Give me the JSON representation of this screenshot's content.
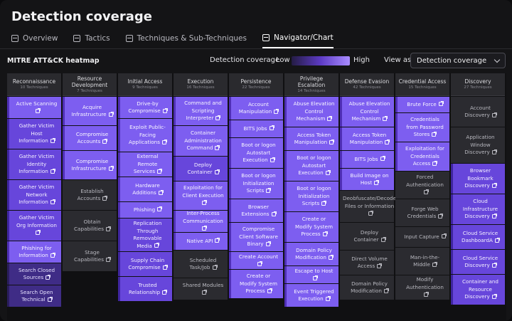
{
  "page_title": "Detection coverage",
  "tabs": [
    {
      "label": "Overview",
      "icon": "overview-icon",
      "active": false
    },
    {
      "label": "Tactics",
      "icon": "tactics-icon",
      "active": false
    },
    {
      "label": "Techniques & Sub-Techniques",
      "icon": "techniques-icon",
      "active": false
    },
    {
      "label": "Navigator/Chart",
      "icon": "navigator-icon",
      "active": true
    }
  ],
  "heatmap": {
    "title": "MITRE ATT&CK heatmap",
    "legend_label": "Detection coverage",
    "low_label": "Low",
    "high_label": "High",
    "legend_colors": [
      "#241c44",
      "#5d3bc5",
      "#a98cff"
    ],
    "view_as_label": "View as",
    "view_as_value": "Detection coverage"
  },
  "columns": [
    {
      "name": "Reconnaissance",
      "count": "10 Techniques",
      "cells": [
        {
          "text": "Active Scanning",
          "level": 4,
          "h": 30
        },
        {
          "text": "Gather Victim Host Information",
          "level": 3,
          "h": 42
        },
        {
          "text": "Gather Victim Identity Information",
          "level": 3,
          "h": 42
        },
        {
          "text": "Gather Victim Network Information",
          "level": 3,
          "h": 42
        },
        {
          "text": "Gather Victim Org Information",
          "level": 3,
          "h": 42
        },
        {
          "text": "Phishing for Information",
          "level": 4,
          "h": 30
        },
        {
          "text": "Search Closed Sources",
          "level": 2,
          "h": 30
        },
        {
          "text": "Search Open Technical",
          "level": 2,
          "h": 30
        }
      ]
    },
    {
      "name": "Resource Development",
      "count": "7 Techniques",
      "cells": [
        {
          "text": "Acquire Infrastructure",
          "level": 4,
          "h": 40
        },
        {
          "text": "Compromise Accounts",
          "level": 4,
          "h": 34
        },
        {
          "text": "Compromise Infrastructure",
          "level": 4,
          "h": 40
        },
        {
          "text": "Establish Accounts",
          "level": 1,
          "h": 42
        },
        {
          "text": "Obtain Capabilities",
          "level": 1,
          "h": 42
        },
        {
          "text": "Stage Capabilities",
          "level": 1,
          "h": 42
        }
      ]
    },
    {
      "name": "Initial Access",
      "count": "9 Techniques",
      "cells": [
        {
          "text": "Drive-by Compromise",
          "level": 4,
          "h": 30
        },
        {
          "text": "Exploit Public-Facing Applications",
          "level": 4,
          "h": 46
        },
        {
          "text": "External Remote Services",
          "level": 4,
          "h": 34
        },
        {
          "text": "Hardware Additions",
          "level": 4,
          "h": 34
        },
        {
          "text": "Phishing",
          "level": 4,
          "h": 22
        },
        {
          "text": "Replication Through Removable Media",
          "level": 3,
          "h": 46
        },
        {
          "text": "Supply Chain Compromise",
          "level": 3,
          "h": 34
        },
        {
          "text": "Trusted Relationship",
          "level": 3,
          "h": 34
        }
      ]
    },
    {
      "name": "Execution",
      "count": "16 Techniques",
      "cells": [
        {
          "text": "Command and Scripting Interpreter",
          "level": 4,
          "h": 40
        },
        {
          "text": "Container Administration Command",
          "level": 4,
          "h": 42
        },
        {
          "text": "Deploy Container",
          "level": 3,
          "h": 34
        },
        {
          "text": "Exploitation for Client Execution",
          "level": 4,
          "h": 40
        },
        {
          "text": "Inter-Process Communication",
          "level": 4,
          "h": 30
        },
        {
          "text": "Native API",
          "level": 4,
          "h": 24
        },
        {
          "text": "Scheduled Task/Job",
          "level": 1,
          "h": 38
        },
        {
          "text": "Shared Modules",
          "level": 1,
          "h": 30
        }
      ]
    },
    {
      "name": "Persistence",
      "count": "22 Techniques",
      "cells": [
        {
          "text": "Account Manipulation",
          "level": 4,
          "h": 32
        },
        {
          "text": "BITS Jobs",
          "level": 4,
          "h": 24
        },
        {
          "text": "Boot or logon Autostart Execution",
          "level": 4,
          "h": 42
        },
        {
          "text": "Boot or logon Initialization Scripts",
          "level": 4,
          "h": 42
        },
        {
          "text": "Browser Extensions",
          "level": 4,
          "h": 32
        },
        {
          "text": "Compromise Client Software Binary",
          "level": 4,
          "h": 40
        },
        {
          "text": "Create Account",
          "level": 4,
          "h": 24
        },
        {
          "text": "Create or Modify System Process",
          "level": 4,
          "h": 40
        }
      ]
    },
    {
      "name": "Privilege Escalation",
      "count": "14 Techniques",
      "cells": [
        {
          "text": "Abuse Elevation Control Mechanism",
          "level": 4,
          "h": 42
        },
        {
          "text": "Access Token Manipulation",
          "level": 4,
          "h": 32
        },
        {
          "text": "Boot or logon Autostart Execution",
          "level": 4,
          "h": 42
        },
        {
          "text": "Boot or logon Initialization Scripts",
          "level": 4,
          "h": 42
        },
        {
          "text": "Create or Modify System Process",
          "level": 4,
          "h": 42
        },
        {
          "text": "Domain Policy Modification",
          "level": 4,
          "h": 32
        },
        {
          "text": "Escape to Host",
          "level": 4,
          "h": 24
        },
        {
          "text": "Event Triggered Execution",
          "level": 4,
          "h": 32
        }
      ]
    },
    {
      "name": "Defense Evasion",
      "count": "42 Techniques",
      "cells": [
        {
          "text": "Abuse Elevation Control Mechanism",
          "level": 4,
          "h": 42
        },
        {
          "text": "Access Token Manipulation",
          "level": 4,
          "h": 32
        },
        {
          "text": "BITS Jobs",
          "level": 4,
          "h": 24
        },
        {
          "text": "Build Image on Host",
          "level": 4,
          "h": 30
        },
        {
          "text": "Deobfuscate/Decode Files or Information",
          "level": 1,
          "h": 44
        },
        {
          "text": "Deploy Container",
          "level": 1,
          "h": 38
        },
        {
          "text": "Direct Volume Access",
          "level": 1,
          "h": 34
        },
        {
          "text": "Domain Policy Modification",
          "level": 1,
          "h": 34
        }
      ]
    },
    {
      "name": "Credential Access",
      "count": "15 Techniques",
      "cells": [
        {
          "text": "Brute Force",
          "level": 4,
          "h": 22
        },
        {
          "text": "Credentials from Password Stores",
          "level": 4,
          "h": 40
        },
        {
          "text": "Exploitation for Credentials Access",
          "level": 4,
          "h": 40
        },
        {
          "text": "Forced Authentication",
          "level": 1,
          "h": 38
        },
        {
          "text": "Forge Web Credentials",
          "level": 1,
          "h": 38
        },
        {
          "text": "Input Capture",
          "level": 1,
          "h": 28
        },
        {
          "text": "Man-in-the-Middle",
          "level": 1,
          "h": 38
        },
        {
          "text": "Modify Authentication",
          "level": 1,
          "h": 34
        }
      ]
    },
    {
      "name": "Discovery",
      "count": "27 Techniques",
      "cells": [
        {
          "text": "Account Discovery",
          "level": 1,
          "h": 42
        },
        {
          "text": "Application Window Discovery",
          "level": 1,
          "h": 50
        },
        {
          "text": "Browser Bookmark Discovery",
          "level": 3,
          "h": 42
        },
        {
          "text": "Cloud Infrastructure Discovery",
          "level": 3,
          "h": 42
        },
        {
          "text": "Cloud Service DashboardA",
          "level": 3,
          "h": 34
        },
        {
          "text": "Cloud Service Discovery",
          "level": 3,
          "h": 34
        },
        {
          "text": "Container and Resource Discovery",
          "level": 3,
          "h": 42
        }
      ]
    }
  ]
}
